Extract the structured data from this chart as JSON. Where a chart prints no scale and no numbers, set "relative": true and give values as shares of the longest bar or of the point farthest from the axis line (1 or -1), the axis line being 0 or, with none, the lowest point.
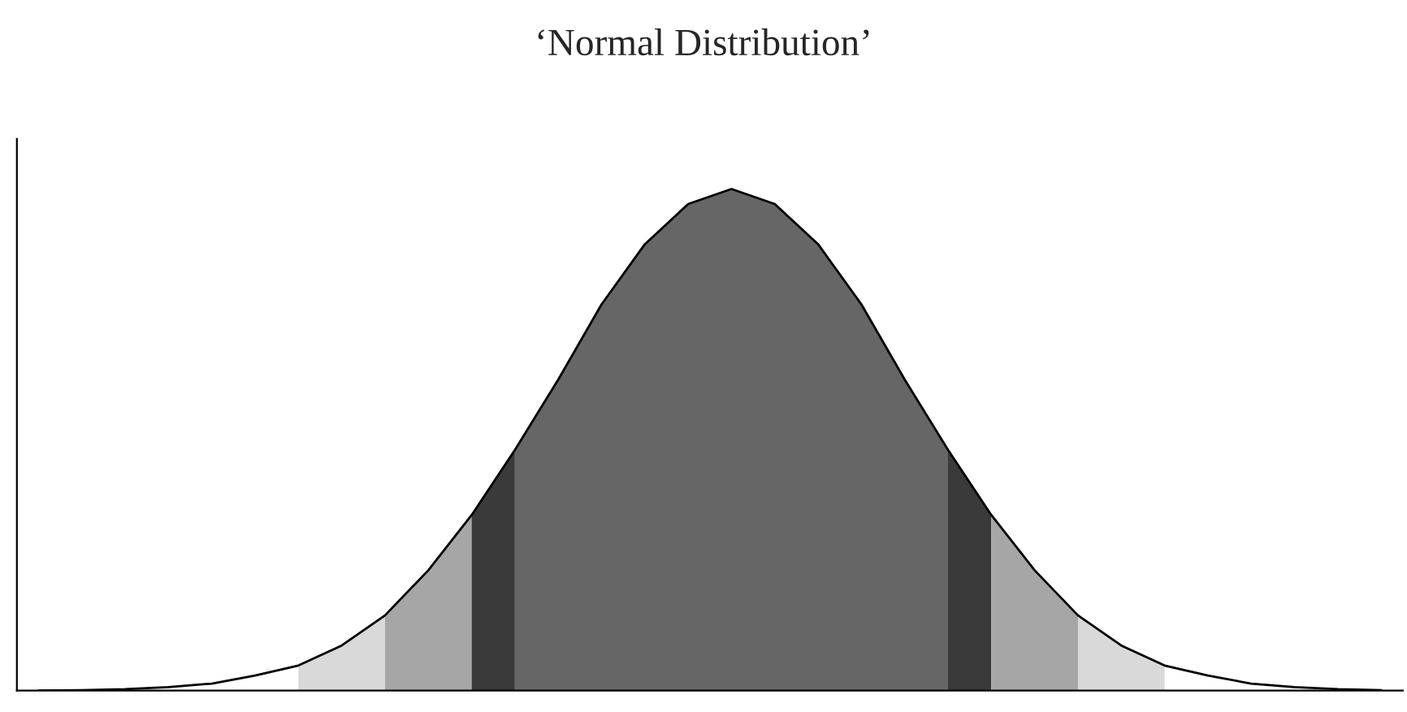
{
  "chart_data": {
    "type": "area",
    "title": "‘Normal Distribution’",
    "relative": true,
    "categories": [
      null,
      null,
      null,
      null,
      null,
      null,
      null,
      null,
      null,
      null,
      null,
      null,
      null,
      null,
      null,
      null,
      null,
      null,
      null,
      null,
      null,
      null,
      null,
      null,
      null,
      null,
      null,
      null,
      null,
      null,
      null,
      null
    ],
    "series": [
      {
        "type": "line",
        "color": "#000000",
        "values": [
          0,
          0.001,
          0.003,
          0.007,
          0.014,
          0.03,
          0.05,
          0.09,
          0.15,
          0.24,
          0.35,
          0.48,
          0.62,
          0.77,
          0.89,
          0.97,
          1,
          0.97,
          0.89,
          0.77,
          0.62,
          0.48,
          0.35,
          0.24,
          0.15,
          0.09,
          0.05,
          0.03,
          0.014,
          0.007,
          0.003,
          0.001
        ]
      },
      {
        "color": "#d9d9d9",
        "values": [
          null,
          null,
          null,
          null,
          null,
          null,
          0.05,
          0.09,
          0.15,
          null,
          null,
          null,
          null,
          null,
          null,
          null,
          null,
          null,
          null,
          null,
          null,
          null,
          null,
          null,
          null,
          null,
          null,
          null,
          null,
          null,
          null,
          null
        ]
      },
      {
        "color": "#a6a6a6",
        "values": [
          null,
          null,
          null,
          null,
          null,
          null,
          null,
          null,
          0.15,
          0.24,
          0.35,
          null,
          null,
          null,
          null,
          null,
          null,
          null,
          null,
          null,
          null,
          null,
          null,
          null,
          null,
          null,
          null,
          null,
          null,
          null,
          null,
          null
        ]
      },
      {
        "color": "#3a3a3a",
        "values": [
          null,
          null,
          null,
          null,
          null,
          null,
          null,
          null,
          null,
          null,
          0.35,
          0.48,
          null,
          null,
          null,
          null,
          null,
          null,
          null,
          null,
          null,
          null,
          null,
          null,
          null,
          null,
          null,
          null,
          null,
          null,
          null,
          null
        ]
      },
      {
        "color": "#666666",
        "values": [
          null,
          null,
          null,
          null,
          null,
          null,
          null,
          null,
          null,
          null,
          null,
          0.48,
          0.62,
          0.77,
          0.89,
          0.97,
          1,
          0.97,
          0.89,
          0.77,
          0.62,
          0.48,
          null,
          null,
          null,
          null,
          null,
          null,
          null,
          null,
          null,
          null
        ]
      },
      {
        "color": "#3a3a3a",
        "values": [
          null,
          null,
          null,
          null,
          null,
          null,
          null,
          null,
          null,
          null,
          null,
          null,
          null,
          null,
          null,
          null,
          null,
          null,
          null,
          null,
          null,
          0.48,
          0.35,
          null,
          null,
          null,
          null,
          null,
          null,
          null,
          null,
          null
        ]
      },
      {
        "color": "#a6a6a6",
        "values": [
          null,
          null,
          null,
          null,
          null,
          null,
          null,
          null,
          null,
          null,
          null,
          null,
          null,
          null,
          null,
          null,
          null,
          null,
          null,
          null,
          null,
          null,
          0.35,
          0.24,
          0.15,
          null,
          null,
          null,
          null,
          null,
          null,
          null
        ]
      },
      {
        "color": "#d9d9d9",
        "values": [
          null,
          null,
          null,
          null,
          null,
          null,
          null,
          null,
          null,
          null,
          null,
          null,
          null,
          null,
          null,
          null,
          null,
          null,
          null,
          null,
          null,
          null,
          null,
          null,
          0.15,
          0.09,
          0.05,
          null,
          null,
          null,
          null,
          null
        ]
      }
    ]
  }
}
